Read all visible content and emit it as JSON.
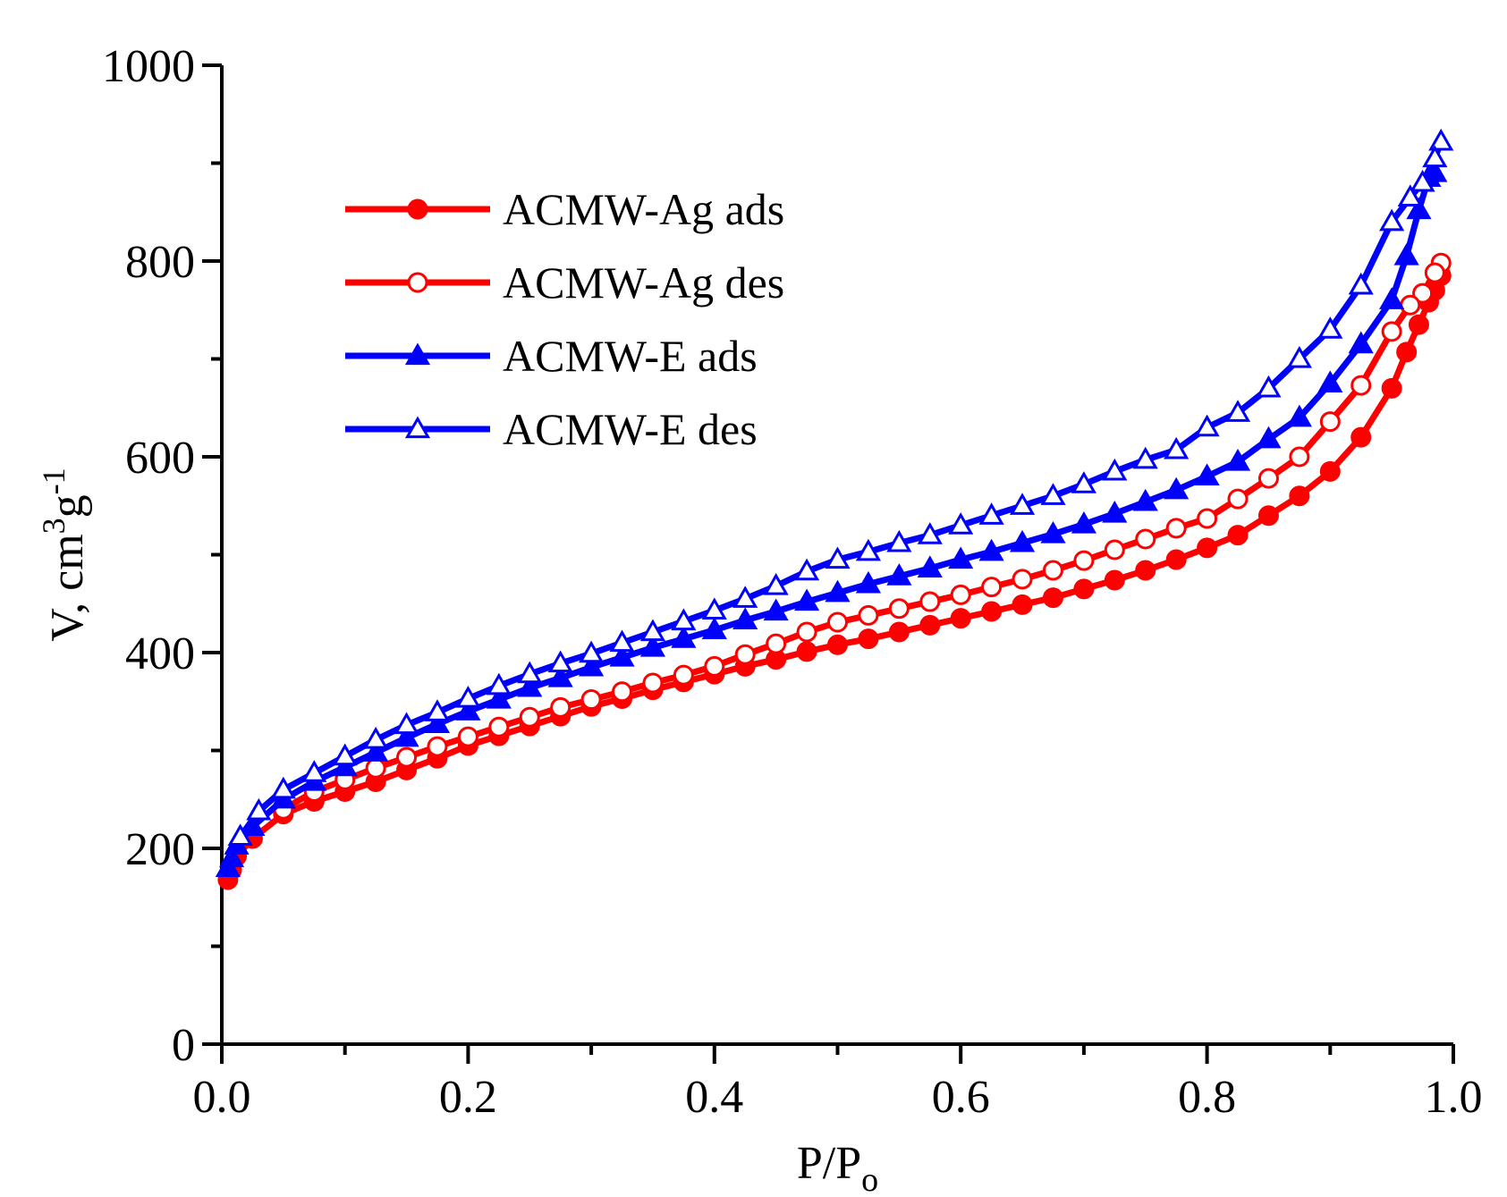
{
  "chart_data": {
    "type": "line",
    "title": "",
    "xlabel": "P/P",
    "xlabel_sub": "o",
    "ylabel": "V, cm",
    "ylabel_sup1": "3",
    "ylabel_mid": "g",
    "ylabel_sup2": "-1",
    "xlim": [
      0.0,
      1.0
    ],
    "ylim": [
      0,
      1000
    ],
    "x_ticks": [
      0.0,
      0.2,
      0.4,
      0.6,
      0.8,
      1.0
    ],
    "x_tick_labels": [
      "0.0",
      "0.2",
      "0.4",
      "0.6",
      "0.8",
      "1.0"
    ],
    "y_ticks": [
      0,
      200,
      400,
      600,
      800,
      1000
    ],
    "y_tick_labels": [
      "0",
      "200",
      "400",
      "600",
      "800",
      "1000"
    ],
    "grid": false,
    "legend_position": "top-left",
    "series": [
      {
        "name": "ACMW-Ag ads",
        "color": "#ff0000",
        "marker": "circle",
        "filled": true,
        "x": [
          0.005,
          0.008,
          0.012,
          0.025,
          0.05,
          0.075,
          0.1,
          0.125,
          0.15,
          0.175,
          0.2,
          0.225,
          0.25,
          0.275,
          0.3,
          0.325,
          0.35,
          0.375,
          0.4,
          0.425,
          0.45,
          0.475,
          0.5,
          0.525,
          0.55,
          0.575,
          0.6,
          0.625,
          0.65,
          0.675,
          0.7,
          0.725,
          0.75,
          0.775,
          0.8,
          0.825,
          0.85,
          0.875,
          0.9,
          0.925,
          0.95,
          0.962,
          0.972,
          0.98,
          0.985,
          0.99
        ],
        "y": [
          168,
          178,
          192,
          210,
          235,
          248,
          258,
          268,
          280,
          292,
          305,
          315,
          325,
          335,
          345,
          353,
          362,
          370,
          378,
          386,
          393,
          401,
          408,
          414,
          421,
          428,
          435,
          442,
          449,
          456,
          465,
          474,
          484,
          495,
          507,
          520,
          540,
          560,
          585,
          620,
          670,
          707,
          735,
          758,
          770,
          785
        ]
      },
      {
        "name": "ACMW-Ag des",
        "color": "#ff0000",
        "marker": "circle",
        "filled": false,
        "x": [
          0.99,
          0.985,
          0.975,
          0.965,
          0.95,
          0.925,
          0.9,
          0.875,
          0.85,
          0.825,
          0.8,
          0.775,
          0.75,
          0.725,
          0.7,
          0.675,
          0.65,
          0.625,
          0.6,
          0.575,
          0.55,
          0.525,
          0.5,
          0.475,
          0.45,
          0.425,
          0.4,
          0.375,
          0.35,
          0.325,
          0.3,
          0.275,
          0.25,
          0.225,
          0.2,
          0.175,
          0.15,
          0.125,
          0.1,
          0.075,
          0.05
        ],
        "y": [
          798,
          788,
          767,
          755,
          728,
          673,
          636,
          600,
          578,
          557,
          537,
          527,
          516,
          505,
          494,
          484,
          475,
          467,
          459,
          452,
          445,
          438,
          431,
          421,
          409,
          398,
          386,
          377,
          369,
          360,
          352,
          344,
          334,
          324,
          314,
          304,
          293,
          282,
          270,
          258,
          240
        ]
      },
      {
        "name": "ACMW-E ads",
        "color": "#0000ff",
        "marker": "triangle",
        "filled": true,
        "x": [
          0.005,
          0.008,
          0.012,
          0.025,
          0.05,
          0.075,
          0.1,
          0.125,
          0.15,
          0.175,
          0.2,
          0.225,
          0.25,
          0.275,
          0.3,
          0.325,
          0.35,
          0.375,
          0.4,
          0.425,
          0.45,
          0.475,
          0.5,
          0.525,
          0.55,
          0.575,
          0.6,
          0.625,
          0.65,
          0.675,
          0.7,
          0.725,
          0.75,
          0.775,
          0.8,
          0.825,
          0.85,
          0.875,
          0.9,
          0.925,
          0.95,
          0.962,
          0.972,
          0.98,
          0.985
        ],
        "y": [
          180,
          190,
          203,
          222,
          250,
          268,
          283,
          298,
          313,
          327,
          340,
          352,
          364,
          374,
          385,
          395,
          405,
          414,
          423,
          433,
          442,
          452,
          461,
          470,
          478,
          486,
          495,
          503,
          512,
          521,
          531,
          542,
          554,
          566,
          580,
          595,
          618,
          640,
          675,
          715,
          760,
          805,
          852,
          885,
          890
        ]
      },
      {
        "name": "ACMW-E des",
        "color": "#0000ff",
        "marker": "triangle",
        "filled": false,
        "x": [
          0.99,
          0.985,
          0.975,
          0.965,
          0.95,
          0.925,
          0.9,
          0.875,
          0.85,
          0.825,
          0.8,
          0.775,
          0.75,
          0.725,
          0.7,
          0.675,
          0.65,
          0.625,
          0.6,
          0.575,
          0.55,
          0.525,
          0.5,
          0.475,
          0.45,
          0.425,
          0.4,
          0.375,
          0.35,
          0.325,
          0.3,
          0.275,
          0.25,
          0.225,
          0.2,
          0.175,
          0.15,
          0.125,
          0.1,
          0.075,
          0.05,
          0.03,
          0.015
        ],
        "y": [
          922,
          905,
          880,
          865,
          840,
          775,
          730,
          700,
          670,
          645,
          630,
          607,
          597,
          585,
          572,
          560,
          550,
          540,
          530,
          520,
          512,
          503,
          495,
          483,
          468,
          455,
          443,
          432,
          421,
          410,
          399,
          389,
          378,
          366,
          353,
          339,
          326,
          311,
          294,
          277,
          260,
          238,
          212
        ]
      }
    ]
  }
}
